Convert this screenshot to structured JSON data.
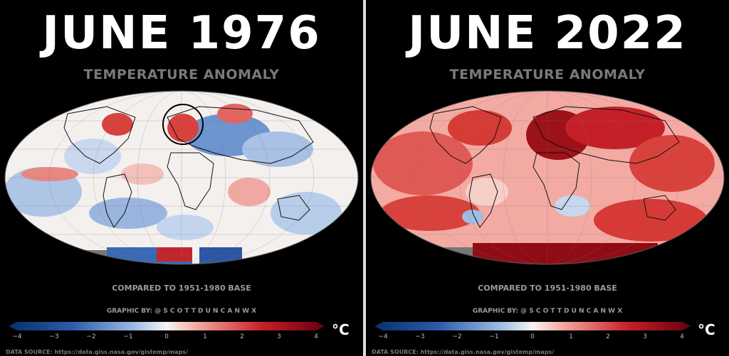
{
  "panels": [
    {
      "title": "JUNE 1976",
      "subtitle": "TEMPERATURE ANOMALY",
      "compared": "COMPARED TO 1951-1980 BASE",
      "credit": "GRAPHIC BY: @ S C O T T D U N C A N W X",
      "unit": "°C",
      "source": "DATA SOURCE: https://data.giss.nasa.gov/gistemp/maps/",
      "colorbar_ticks": [
        "−4",
        "−3",
        "−2",
        "−1",
        "0",
        "1",
        "2",
        "3",
        "4"
      ],
      "dominant_anomaly": "mixed"
    },
    {
      "title": "JUNE 2022",
      "subtitle": "TEMPERATURE ANOMALY",
      "compared": "COMPARED TO 1951-1980 BASE",
      "credit": "GRAPHIC BY: @ S C O T T D U N C A N W X",
      "unit": "°C",
      "source": "DATA SOURCE: https://data.giss.nasa.gov/gistemp/maps/",
      "colorbar_ticks": [
        "−4",
        "−3",
        "−2",
        "−1",
        "0",
        "1",
        "2",
        "3",
        "4"
      ],
      "dominant_anomaly": "warm"
    }
  ],
  "colors": {
    "background": "#000000",
    "cold": "#2c5aa8",
    "neutral": "#f7f4f2",
    "warm": "#c8202a",
    "hot": "#7e0a12"
  }
}
